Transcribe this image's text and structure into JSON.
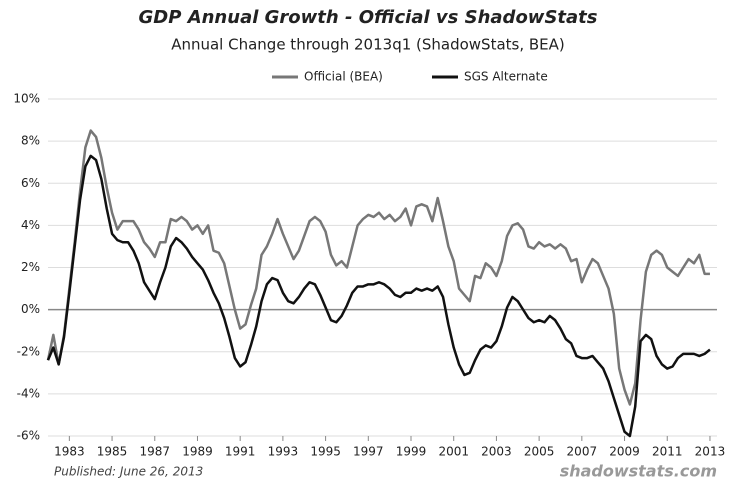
{
  "chart_data": {
    "type": "line",
    "title": "GDP Annual Growth - Official vs ShadowStats",
    "subtitle": "Annual Change through 2013q1  (ShadowStats, BEA)",
    "published": "Published: June 26, 2013",
    "source": "shadowstats.com",
    "x": [
      1982,
      1982.25,
      1982.5,
      1982.75,
      1983,
      1983.25,
      1983.5,
      1983.75,
      1984,
      1984.25,
      1984.5,
      1984.75,
      1985,
      1985.25,
      1985.5,
      1985.75,
      1986,
      1986.25,
      1986.5,
      1986.75,
      1987,
      1987.25,
      1987.5,
      1987.75,
      1988,
      1988.25,
      1988.5,
      1988.75,
      1989,
      1989.25,
      1989.5,
      1989.75,
      1990,
      1990.25,
      1990.5,
      1990.75,
      1991,
      1991.25,
      1991.5,
      1991.75,
      1992,
      1992.25,
      1992.5,
      1992.75,
      1993,
      1993.25,
      1993.5,
      1993.75,
      1994,
      1994.25,
      1994.5,
      1994.75,
      1995,
      1995.25,
      1995.5,
      1995.75,
      1996,
      1996.25,
      1996.5,
      1996.75,
      1997,
      1997.25,
      1997.5,
      1997.75,
      1998,
      1998.25,
      1998.5,
      1998.75,
      1999,
      1999.25,
      1999.5,
      1999.75,
      2000,
      2000.25,
      2000.5,
      2000.75,
      2001,
      2001.25,
      2001.5,
      2001.75,
      2002,
      2002.25,
      2002.5,
      2002.75,
      2003,
      2003.25,
      2003.5,
      2003.75,
      2004,
      2004.25,
      2004.5,
      2004.75,
      2005,
      2005.25,
      2005.5,
      2005.75,
      2006,
      2006.25,
      2006.5,
      2006.75,
      2007,
      2007.25,
      2007.5,
      2007.75,
      2008,
      2008.25,
      2008.5,
      2008.75,
      2009,
      2009.25,
      2009.5,
      2009.75,
      2010,
      2010.25,
      2010.5,
      2010.75,
      2011,
      2011.25,
      2011.5,
      2011.75,
      2012,
      2012.25,
      2012.5,
      2012.75,
      2013
    ],
    "series": [
      {
        "name": "Official (BEA)",
        "color": "#777777",
        "values": [
          -2.4,
          -1.2,
          -2.6,
          -1.2,
          1.0,
          3.2,
          5.6,
          7.7,
          8.5,
          8.2,
          7.2,
          5.8,
          4.6,
          3.8,
          4.2,
          4.2,
          4.2,
          3.8,
          3.2,
          2.9,
          2.5,
          3.2,
          3.2,
          4.3,
          4.2,
          4.4,
          4.2,
          3.8,
          4.0,
          3.6,
          4.0,
          2.8,
          2.7,
          2.2,
          1.1,
          0.0,
          -0.9,
          -0.7,
          0.2,
          1.0,
          2.6,
          3.0,
          3.6,
          4.3,
          3.6,
          3.0,
          2.4,
          2.8,
          3.5,
          4.2,
          4.4,
          4.2,
          3.7,
          2.6,
          2.1,
          2.3,
          2.0,
          3.0,
          4.0,
          4.3,
          4.5,
          4.4,
          4.6,
          4.3,
          4.5,
          4.2,
          4.4,
          4.8,
          4.0,
          4.9,
          5.0,
          4.9,
          4.2,
          5.3,
          4.2,
          3.0,
          2.3,
          1.0,
          0.7,
          0.4,
          1.6,
          1.5,
          2.2,
          2.0,
          1.6,
          2.3,
          3.5,
          4.0,
          4.1,
          3.8,
          3.0,
          2.9,
          3.2,
          3.0,
          3.1,
          2.9,
          3.1,
          2.9,
          2.3,
          2.4,
          1.3,
          1.9,
          2.4,
          2.2,
          1.6,
          1.0,
          -0.2,
          -2.8,
          -3.8,
          -4.5,
          -3.5,
          -0.5,
          1.8,
          2.6,
          2.8,
          2.6,
          2.0,
          1.8,
          1.6,
          2.0,
          2.4,
          2.2,
          2.6,
          1.7,
          1.7
        ]
      },
      {
        "name": "SGS Alternate",
        "color": "#111111",
        "values": [
          -2.4,
          -1.8,
          -2.6,
          -1.3,
          0.8,
          3.0,
          5.2,
          6.8,
          7.3,
          7.1,
          6.2,
          4.8,
          3.6,
          3.3,
          3.2,
          3.2,
          2.8,
          2.2,
          1.3,
          0.9,
          0.5,
          1.3,
          2.0,
          3.0,
          3.4,
          3.2,
          2.9,
          2.5,
          2.2,
          1.9,
          1.4,
          0.8,
          0.3,
          -0.4,
          -1.3,
          -2.3,
          -2.7,
          -2.5,
          -1.7,
          -0.8,
          0.4,
          1.2,
          1.5,
          1.4,
          0.8,
          0.4,
          0.3,
          0.6,
          1.0,
          1.3,
          1.2,
          0.7,
          0.1,
          -0.5,
          -0.6,
          -0.3,
          0.2,
          0.8,
          1.1,
          1.1,
          1.2,
          1.2,
          1.3,
          1.2,
          1.0,
          0.7,
          0.6,
          0.8,
          0.8,
          1.0,
          0.9,
          1.0,
          0.9,
          1.1,
          0.6,
          -0.7,
          -1.8,
          -2.6,
          -3.1,
          -3.0,
          -2.4,
          -1.9,
          -1.7,
          -1.8,
          -1.5,
          -0.8,
          0.1,
          0.6,
          0.4,
          0.0,
          -0.4,
          -0.6,
          -0.5,
          -0.6,
          -0.3,
          -0.5,
          -0.9,
          -1.4,
          -1.6,
          -2.2,
          -2.3,
          -2.3,
          -2.2,
          -2.5,
          -2.8,
          -3.4,
          -4.2,
          -5.0,
          -5.8,
          -6.0,
          -4.6,
          -1.5,
          -1.2,
          -1.4,
          -2.2,
          -2.6,
          -2.8,
          -2.7,
          -2.3,
          -2.1,
          -2.1,
          -2.1,
          -2.2,
          -2.1,
          -1.9
        ]
      }
    ],
    "xlim": [
      1982,
      2013.33
    ],
    "xticks": [
      1983,
      1985,
      1987,
      1989,
      1991,
      1993,
      1995,
      1997,
      1999,
      2001,
      2003,
      2005,
      2007,
      2009,
      2011,
      2013
    ],
    "ylim": [
      -6,
      10
    ],
    "yticks": [
      {
        "value": -6,
        "label": "-6%"
      },
      {
        "value": -4,
        "label": "-4%"
      },
      {
        "value": -2,
        "label": "-2%"
      },
      {
        "value": 0,
        "label": "0%"
      },
      {
        "value": 2,
        "label": "2%"
      },
      {
        "value": 4,
        "label": "4%"
      },
      {
        "value": 6,
        "label": "6%"
      },
      {
        "value": 8,
        "label": "8%"
      },
      {
        "value": 10,
        "label": "10%"
      }
    ],
    "grid": true,
    "legend": "top"
  }
}
